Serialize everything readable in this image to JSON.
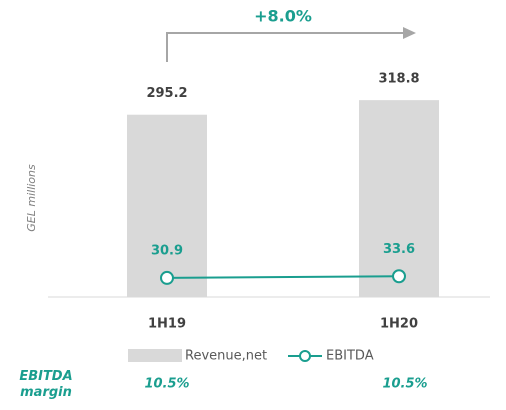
{
  "chart_data": {
    "type": "bar",
    "categories": [
      "1H19",
      "1H20"
    ],
    "series": [
      {
        "name": "Revenue,net",
        "type": "bar",
        "color": "#d9d9d9",
        "values": [
          295.2,
          318.8
        ]
      },
      {
        "name": "EBITDA",
        "type": "line",
        "color": "#1a9e8f",
        "values": [
          30.9,
          33.6
        ]
      }
    ],
    "ylim": [
      0,
      400
    ],
    "y_label": "GEL millions",
    "annotation": "+8.0%",
    "margin_label": "EBITDA margin",
    "margin": {
      "values": [
        10.5,
        10.5
      ],
      "value_labels": [
        "10.5%",
        "10.5%"
      ]
    }
  }
}
